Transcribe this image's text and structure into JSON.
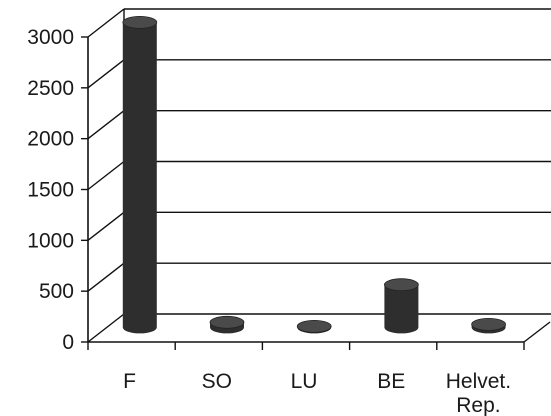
{
  "chart_data": {
    "type": "bar",
    "style": "3d-cylinder",
    "title": "",
    "xlabel": "",
    "ylabel": "",
    "categories": [
      [
        "F"
      ],
      [
        "SO"
      ],
      [
        "LU"
      ],
      [
        "BE"
      ],
      [
        "Helvet.",
        "Rep."
      ]
    ],
    "values": [
      3000,
      50,
      10,
      420,
      30
    ],
    "ylim": [
      0,
      3000
    ],
    "yticks": [
      "0",
      "500",
      "1000",
      "1500",
      "2000",
      "2500",
      "3000"
    ],
    "grid": true,
    "legend": "none",
    "colors": {
      "bar_body": "#2e2e2e",
      "bar_top": "#4a4a4a",
      "grid": "#111111",
      "text": "#1a1a1a"
    }
  }
}
